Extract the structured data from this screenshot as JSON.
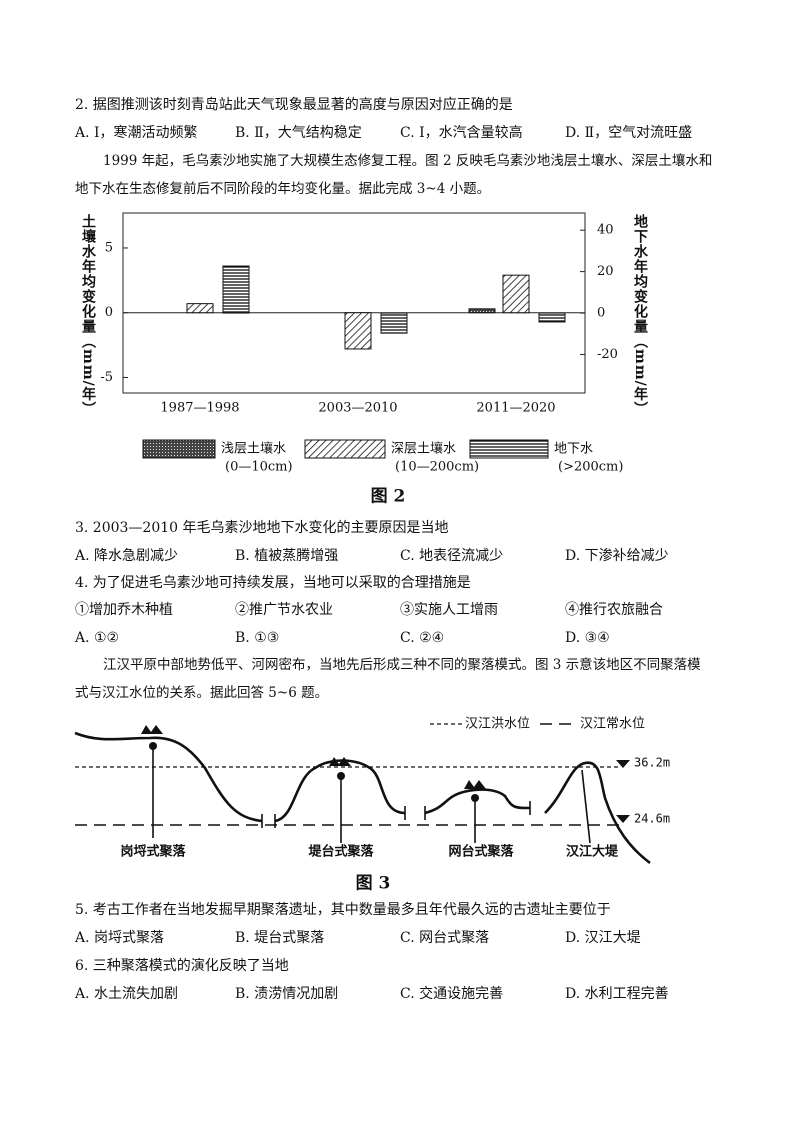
{
  "question_2": {
    "stem": "2. 据图推测该时刻青岛站此天气现象最显著的高度与原因对应正确的是",
    "options": [
      "A. Ⅰ，寒潮活动频繁",
      "B. Ⅱ，大气结构稳定",
      "C. Ⅰ，水汽含量较高",
      "D. Ⅱ，空气对流旺盛"
    ]
  },
  "passage_1": [
    "1999 年起，毛乌素沙地实施了大规模生态修复工程。图 2 反映毛乌素沙地浅层土壤水、深层土壤水和",
    "地下水在生态修复前后不同阶段的年均变化量。据此完成 3~4 小题。"
  ],
  "figure_2": {
    "type": "bar",
    "caption": "图 2",
    "y_label": "土壤水年均变化量（mm/年）",
    "y2_label": "地下水年均变化量（mm/年）",
    "categories": [
      "1987—1998",
      "2003—2010",
      "2011—2020"
    ],
    "ylim": [
      -6.2,
      7.7
    ],
    "yticks": [
      5,
      0,
      -5
    ],
    "y2lim": [
      -38.6,
      48.3
    ],
    "y2ticks": [
      40,
      20,
      0,
      -20
    ],
    "series": [
      {
        "name": "浅层土壤水",
        "range": "(0—10cm)",
        "pattern": "dots",
        "values": [
          null,
          null,
          0.3
        ]
      },
      {
        "name": "深层土壤水",
        "range": "(10—200cm)",
        "pattern": "diagonal",
        "values": [
          0.7,
          -2.8,
          2.9
        ]
      },
      {
        "name": "地下水",
        "range": "(>200cm)",
        "pattern": "horizontal",
        "axis": "y2",
        "values": [
          22.7,
          -9.7,
          -4.3
        ]
      }
    ]
  },
  "question_3": {
    "stem": "3. 2003—2010 年毛乌素沙地地下水变化的主要原因是当地",
    "options": [
      "A. 降水急剧减少",
      "B. 植被蒸腾增强",
      "C. 地表径流减少",
      "D. 下渗补给减少"
    ]
  },
  "question_4": {
    "stem": "4. 为了促进毛乌素沙地可持续发展，当地可以采取的合理措施是",
    "items": [
      "①增加乔木种植",
      "②推广节水农业",
      "③实施人工增雨",
      "④推行农旅融合"
    ],
    "options": [
      "A. ①②",
      "B. ①③",
      "C. ②④",
      "D. ③④"
    ]
  },
  "passage_2": [
    "江汉平原中部地势低平、河网密布，当地先后形成三种不同的聚落模式。图 3 示意该地区不同聚落模",
    "式与汉江水位的关系。据此回答 5~6 题。"
  ],
  "figure_3": {
    "caption": "图 3",
    "legend": [
      "汉江洪水位",
      "汉江常水位"
    ],
    "levels": [
      "36.2m",
      "24.6m"
    ],
    "labels": [
      "岗埒式聚落",
      "堤台式聚落",
      "网台式聚落",
      "汉江大堤"
    ]
  },
  "question_5": {
    "stem": "5. 考古工作者在当地发掘早期聚落遗址，其中数量最多且年代最久远的古遗址主要位于",
    "options": [
      "A. 岗埒式聚落",
      "B. 堤台式聚落",
      "C. 网台式聚落",
      "D. 汉江大堤"
    ]
  },
  "question_6": {
    "stem": "6. 三种聚落模式的演化反映了当地",
    "options": [
      "A. 水土流失加剧",
      "B. 渍涝情况加剧",
      "C. 交通设施完善",
      "D. 水利工程完善"
    ]
  }
}
